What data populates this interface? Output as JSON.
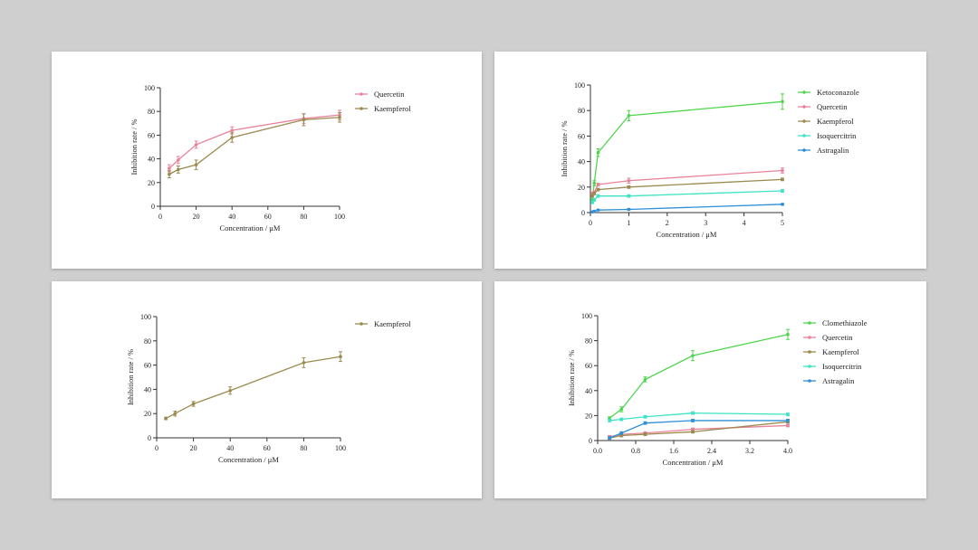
{
  "chart_data": [
    {
      "type": "line",
      "xlabel": "Concentration /  μM",
      "ylabel": "Inhibition rate / %",
      "xlim": [
        0,
        100
      ],
      "ylim": [
        0,
        100
      ],
      "xticks": [
        0,
        20,
        40,
        60,
        80,
        100
      ],
      "yticks": [
        0,
        20,
        40,
        60,
        80,
        100
      ],
      "x": [
        5,
        10,
        20,
        40,
        80,
        100
      ],
      "legend": "top-right",
      "series": [
        {
          "name": "Quercetin",
          "color": "#e8839a",
          "values": [
            32,
            39,
            52,
            64,
            74,
            77
          ],
          "errors": [
            3,
            3,
            3,
            3,
            4,
            4
          ]
        },
        {
          "name": "Kaempferol",
          "color": "#9a8a4e",
          "values": [
            27,
            31,
            35,
            58,
            73,
            75
          ],
          "errors": [
            3,
            3,
            4,
            4,
            5,
            4
          ]
        }
      ]
    },
    {
      "type": "line",
      "xlabel": "Concentration /  μM",
      "ylabel": "Inhibition rate / %",
      "xlim": [
        0,
        5
      ],
      "ylim": [
        0,
        100
      ],
      "xticks": [
        0,
        1,
        2,
        3,
        4,
        5
      ],
      "yticks": [
        0,
        20,
        40,
        60,
        80,
        100
      ],
      "x": [
        0.05,
        0.1,
        0.2,
        1,
        5
      ],
      "legend": "top-right",
      "series": [
        {
          "name": "Ketoconazole",
          "color": "#4fd64f",
          "values": [
            10,
            23,
            47,
            76,
            87
          ],
          "errors": [
            1,
            2,
            3,
            4,
            6
          ]
        },
        {
          "name": "Quercetin",
          "color": "#e8839a",
          "values": [
            15,
            16,
            22,
            25,
            33
          ],
          "errors": [
            1,
            1,
            1,
            2,
            2
          ]
        },
        {
          "name": "Kaempferol",
          "color": "#9a8a4e",
          "values": [
            13,
            15,
            18,
            20,
            26
          ],
          "errors": [
            1,
            1,
            1,
            1,
            1
          ]
        },
        {
          "name": "Isoquercitrin",
          "color": "#3de3c3",
          "values": [
            8,
            10,
            13,
            13,
            17
          ],
          "errors": [
            1,
            1,
            1,
            1,
            1
          ]
        },
        {
          "name": "Astragalin",
          "color": "#2f8fd8",
          "values": [
            0.5,
            1,
            2,
            2.5,
            6.5
          ],
          "errors": [
            0.5,
            0.5,
            0.5,
            0.5,
            0.5
          ]
        }
      ]
    },
    {
      "type": "line",
      "xlabel": "Concentration /  μM",
      "ylabel": "Inhibition rate / %",
      "xlim": [
        0,
        100
      ],
      "ylim": [
        0,
        100
      ],
      "xticks": [
        0,
        20,
        40,
        60,
        80,
        100
      ],
      "yticks": [
        0,
        20,
        40,
        60,
        80,
        100
      ],
      "x": [
        5,
        10,
        20,
        40,
        80,
        100
      ],
      "legend": "top-right",
      "series": [
        {
          "name": "Kaempferol",
          "color": "#9a8a4e",
          "values": [
            16,
            20,
            28,
            39,
            62,
            67
          ],
          "errors": [
            1,
            2,
            2,
            3,
            4,
            4
          ]
        }
      ]
    },
    {
      "type": "line",
      "xlabel": "Concentration /  μM",
      "ylabel": "Inhibition rate / %",
      "xlim": [
        0,
        4
      ],
      "ylim": [
        0,
        100
      ],
      "xticks": [
        "0.0",
        "0.8",
        "1.6",
        "2.4",
        "3.2",
        "4.0"
      ],
      "xtick_values": [
        0,
        0.8,
        1.6,
        2.4,
        3.2,
        4.0
      ],
      "yticks": [
        0,
        20,
        40,
        60,
        80,
        100
      ],
      "x": [
        0.25,
        0.5,
        1,
        2,
        4
      ],
      "legend": "top-right",
      "series": [
        {
          "name": "Clomethiazole",
          "color": "#4fd64f",
          "values": [
            18,
            25,
            49,
            68,
            85
          ],
          "errors": [
            1,
            2,
            2,
            4,
            4
          ]
        },
        {
          "name": "Quercetin",
          "color": "#e8839a",
          "values": [
            3,
            5,
            6,
            9,
            12
          ],
          "errors": [
            1,
            1,
            1,
            1,
            1
          ]
        },
        {
          "name": "Kaempferol",
          "color": "#9a8a4e",
          "values": [
            2,
            4,
            5,
            7,
            15
          ],
          "errors": [
            1,
            1,
            1,
            1,
            1
          ]
        },
        {
          "name": "Isoquercitrin",
          "color": "#3de3c3",
          "values": [
            16,
            17,
            19,
            22,
            21
          ],
          "errors": [
            1,
            1,
            1,
            1,
            1
          ]
        },
        {
          "name": "Astragalin",
          "color": "#2f8fd8",
          "values": [
            2,
            6,
            14,
            16,
            16
          ],
          "errors": [
            1,
            1,
            1,
            1,
            1
          ]
        }
      ]
    }
  ]
}
